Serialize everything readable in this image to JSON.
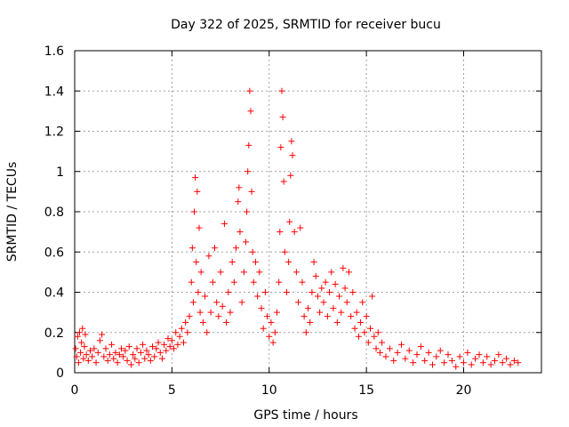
{
  "chart_data": {
    "type": "scatter",
    "title": "Day 322 of 2025, SRMTID for receiver bucu",
    "xlabel": "GPS time / hours",
    "ylabel": "SRMTID / TECUs",
    "xlim": [
      0,
      24
    ],
    "ylim": [
      0,
      1.6
    ],
    "xticks": [
      0,
      5,
      10,
      15,
      20
    ],
    "xtick_labels": [
      "0",
      "5",
      "10",
      "15",
      "20"
    ],
    "yticks": [
      0,
      0.2,
      0.4,
      0.6,
      0.8,
      1.0,
      1.2,
      1.4,
      1.6
    ],
    "ytick_labels": [
      "0",
      "0.2",
      "0.4",
      "0.6",
      "0.8",
      "1",
      "1.2",
      "1.4",
      "1.6"
    ],
    "grid": true,
    "marker": "+",
    "marker_color": "#ff0000",
    "series": [
      {
        "name": "SRMTID",
        "points": [
          [
            0.05,
            0.12
          ],
          [
            0.1,
            0.08
          ],
          [
            0.15,
            0.18
          ],
          [
            0.2,
            0.05
          ],
          [
            0.25,
            0.2
          ],
          [
            0.3,
            0.1
          ],
          [
            0.35,
            0.15
          ],
          [
            0.4,
            0.22
          ],
          [
            0.45,
            0.07
          ],
          [
            0.5,
            0.13
          ],
          [
            0.55,
            0.19
          ],
          [
            0.6,
            0.09
          ],
          [
            0.7,
            0.06
          ],
          [
            0.8,
            0.11
          ],
          [
            0.9,
            0.08
          ],
          [
            1.0,
            0.12
          ],
          [
            1.1,
            0.05
          ],
          [
            1.2,
            0.1
          ],
          [
            1.3,
            0.16
          ],
          [
            1.4,
            0.19
          ],
          [
            1.5,
            0.08
          ],
          [
            1.6,
            0.12
          ],
          [
            1.7,
            0.06
          ],
          [
            1.8,
            0.09
          ],
          [
            1.9,
            0.14
          ],
          [
            2.0,
            0.07
          ],
          [
            2.1,
            0.1
          ],
          [
            2.2,
            0.05
          ],
          [
            2.3,
            0.09
          ],
          [
            2.4,
            0.12
          ],
          [
            2.5,
            0.08
          ],
          [
            2.6,
            0.11
          ],
          [
            2.7,
            0.06
          ],
          [
            2.8,
            0.13
          ],
          [
            2.9,
            0.04
          ],
          [
            3.0,
            0.09
          ],
          [
            3.1,
            0.07
          ],
          [
            3.2,
            0.12
          ],
          [
            3.3,
            0.05
          ],
          [
            3.4,
            0.1
          ],
          [
            3.5,
            0.14
          ],
          [
            3.6,
            0.07
          ],
          [
            3.7,
            0.11
          ],
          [
            3.8,
            0.09
          ],
          [
            3.9,
            0.06
          ],
          [
            4.0,
            0.13
          ],
          [
            4.1,
            0.08
          ],
          [
            4.2,
            0.12
          ],
          [
            4.3,
            0.15
          ],
          [
            4.4,
            0.1
          ],
          [
            4.5,
            0.07
          ],
          [
            4.6,
            0.14
          ],
          [
            4.7,
            0.11
          ],
          [
            4.8,
            0.17
          ],
          [
            4.9,
            0.13
          ],
          [
            5.0,
            0.16
          ],
          [
            5.1,
            0.12
          ],
          [
            5.2,
            0.2
          ],
          [
            5.3,
            0.14
          ],
          [
            5.4,
            0.18
          ],
          [
            5.5,
            0.22
          ],
          [
            5.6,
            0.15
          ],
          [
            5.7,
            0.25
          ],
          [
            5.8,
            0.2
          ],
          [
            5.9,
            0.28
          ],
          [
            6.0,
            0.45
          ],
          [
            6.05,
            0.62
          ],
          [
            6.1,
            0.35
          ],
          [
            6.15,
            0.8
          ],
          [
            6.2,
            0.97
          ],
          [
            6.25,
            0.55
          ],
          [
            6.3,
            0.9
          ],
          [
            6.35,
            0.4
          ],
          [
            6.4,
            0.72
          ],
          [
            6.45,
            0.3
          ],
          [
            6.5,
            0.5
          ],
          [
            6.6,
            0.25
          ],
          [
            6.7,
            0.38
          ],
          [
            6.8,
            0.2
          ],
          [
            6.9,
            0.58
          ],
          [
            7.0,
            0.3
          ],
          [
            7.1,
            0.45
          ],
          [
            7.2,
            0.62
          ],
          [
            7.3,
            0.35
          ],
          [
            7.4,
            0.28
          ],
          [
            7.5,
            0.5
          ],
          [
            7.6,
            0.33
          ],
          [
            7.7,
            0.74
          ],
          [
            7.8,
            0.25
          ],
          [
            7.9,
            0.4
          ],
          [
            8.0,
            0.3
          ],
          [
            8.1,
            0.55
          ],
          [
            8.2,
            0.45
          ],
          [
            8.3,
            0.62
          ],
          [
            8.4,
            0.85
          ],
          [
            8.45,
            0.92
          ],
          [
            8.5,
            0.7
          ],
          [
            8.6,
            0.35
          ],
          [
            8.7,
            0.5
          ],
          [
            8.8,
            0.65
          ],
          [
            8.85,
            0.8
          ],
          [
            8.9,
            1.0
          ],
          [
            8.95,
            1.13
          ],
          [
            9.0,
            1.4
          ],
          [
            9.05,
            1.3
          ],
          [
            9.1,
            0.9
          ],
          [
            9.15,
            0.6
          ],
          [
            9.2,
            0.45
          ],
          [
            9.3,
            0.55
          ],
          [
            9.4,
            0.38
          ],
          [
            9.5,
            0.5
          ],
          [
            9.6,
            0.32
          ],
          [
            9.7,
            0.22
          ],
          [
            9.8,
            0.4
          ],
          [
            9.9,
            0.28
          ],
          [
            10.0,
            0.18
          ],
          [
            10.1,
            0.25
          ],
          [
            10.2,
            0.15
          ],
          [
            10.3,
            0.2
          ],
          [
            10.4,
            0.3
          ],
          [
            10.5,
            0.45
          ],
          [
            10.55,
            0.7
          ],
          [
            10.6,
            1.12
          ],
          [
            10.65,
            1.4
          ],
          [
            10.7,
            1.27
          ],
          [
            10.75,
            0.95
          ],
          [
            10.8,
            0.6
          ],
          [
            10.9,
            0.4
          ],
          [
            11.0,
            0.55
          ],
          [
            11.05,
            0.75
          ],
          [
            11.1,
            0.98
          ],
          [
            11.15,
            1.15
          ],
          [
            11.2,
            1.08
          ],
          [
            11.3,
            0.7
          ],
          [
            11.4,
            0.5
          ],
          [
            11.5,
            0.35
          ],
          [
            11.6,
            0.72
          ],
          [
            11.7,
            0.45
          ],
          [
            11.8,
            0.28
          ],
          [
            11.9,
            0.2
          ],
          [
            12.0,
            0.32
          ],
          [
            12.1,
            0.25
          ],
          [
            12.2,
            0.4
          ],
          [
            12.3,
            0.55
          ],
          [
            12.4,
            0.48
          ],
          [
            12.5,
            0.38
          ],
          [
            12.6,
            0.3
          ],
          [
            12.7,
            0.42
          ],
          [
            12.8,
            0.35
          ],
          [
            12.9,
            0.45
          ],
          [
            13.0,
            0.28
          ],
          [
            13.1,
            0.4
          ],
          [
            13.2,
            0.5
          ],
          [
            13.3,
            0.32
          ],
          [
            13.4,
            0.44
          ],
          [
            13.5,
            0.25
          ],
          [
            13.6,
            0.38
          ],
          [
            13.7,
            0.3
          ],
          [
            13.8,
            0.52
          ],
          [
            13.9,
            0.42
          ],
          [
            14.0,
            0.35
          ],
          [
            14.1,
            0.5
          ],
          [
            14.2,
            0.28
          ],
          [
            14.3,
            0.4
          ],
          [
            14.4,
            0.22
          ],
          [
            14.5,
            0.3
          ],
          [
            14.6,
            0.18
          ],
          [
            14.7,
            0.25
          ],
          [
            14.8,
            0.35
          ],
          [
            14.9,
            0.2
          ],
          [
            15.0,
            0.28
          ],
          [
            15.1,
            0.15
          ],
          [
            15.2,
            0.22
          ],
          [
            15.3,
            0.38
          ],
          [
            15.4,
            0.18
          ],
          [
            15.5,
            0.12
          ],
          [
            15.6,
            0.2
          ],
          [
            15.7,
            0.1
          ],
          [
            15.8,
            0.15
          ],
          [
            16.0,
            0.08
          ],
          [
            16.2,
            0.12
          ],
          [
            16.4,
            0.06
          ],
          [
            16.6,
            0.1
          ],
          [
            16.8,
            0.14
          ],
          [
            17.0,
            0.07
          ],
          [
            17.2,
            0.11
          ],
          [
            17.4,
            0.05
          ],
          [
            17.6,
            0.09
          ],
          [
            17.8,
            0.13
          ],
          [
            18.0,
            0.06
          ],
          [
            18.2,
            0.1
          ],
          [
            18.4,
            0.04
          ],
          [
            18.6,
            0.08
          ],
          [
            18.8,
            0.11
          ],
          [
            19.0,
            0.05
          ],
          [
            19.2,
            0.09
          ],
          [
            19.4,
            0.06
          ],
          [
            19.6,
            0.03
          ],
          [
            19.8,
            0.08
          ],
          [
            20.0,
            0.05
          ],
          [
            20.2,
            0.1
          ],
          [
            20.4,
            0.04
          ],
          [
            20.6,
            0.07
          ],
          [
            20.8,
            0.09
          ],
          [
            21.0,
            0.05
          ],
          [
            21.2,
            0.08
          ],
          [
            21.4,
            0.04
          ],
          [
            21.6,
            0.06
          ],
          [
            21.8,
            0.09
          ],
          [
            22.0,
            0.05
          ],
          [
            22.2,
            0.07
          ],
          [
            22.4,
            0.04
          ],
          [
            22.6,
            0.06
          ],
          [
            22.8,
            0.05
          ]
        ]
      }
    ]
  }
}
